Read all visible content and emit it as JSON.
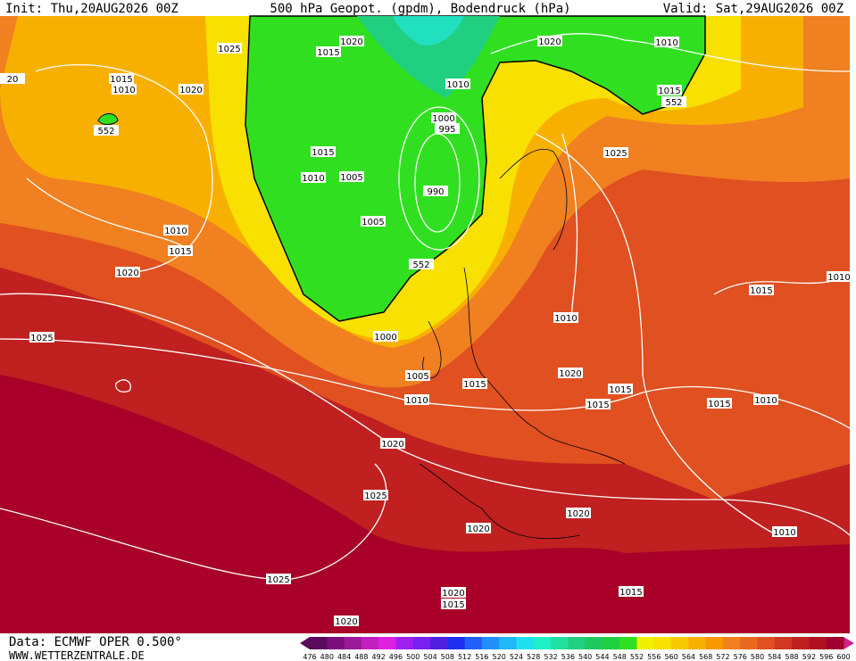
{
  "header": {
    "init": "Init: Thu,20AUG2026 00Z",
    "title": "500 hPa Geopot. (gpdm), Bodendruck (hPa)",
    "valid": "Valid: Sat,29AUG2026 00Z"
  },
  "footer": {
    "data": "Data: ECMWF OPER 0.500°",
    "site": "WWW.WETTERZENTRALE.DE"
  },
  "colorbar": {
    "ticks": [
      476,
      480,
      484,
      488,
      492,
      496,
      500,
      504,
      508,
      512,
      516,
      520,
      524,
      528,
      532,
      536,
      540,
      544,
      548,
      552,
      556,
      560,
      564,
      568,
      572,
      576,
      580,
      584,
      588,
      592,
      596,
      600
    ],
    "colors": [
      "#5a0a5a",
      "#7a0f7a",
      "#9a1a9a",
      "#c020c0",
      "#e020e0",
      "#a020f0",
      "#7a20f0",
      "#5020e0",
      "#2030f0",
      "#2060f8",
      "#2090f8",
      "#20b8f8",
      "#20e0f0",
      "#20f0c8",
      "#20e0a0",
      "#20d080",
      "#20c860",
      "#20d040",
      "#30e020",
      "#f0f000",
      "#f8e000",
      "#f8c800",
      "#f8b000",
      "#f89800",
      "#f08020",
      "#e86820",
      "#e05020",
      "#d03820",
      "#c02020",
      "#b01020",
      "#a00030"
    ]
  },
  "isobar_labels": [
    "1020",
    "1015",
    "1025",
    "1020",
    "1010",
    "1015",
    "1010",
    "1020",
    "20",
    "1010",
    "1000",
    "995",
    "1015",
    "552",
    "552",
    "1025",
    "1015",
    "1010",
    "1005",
    "990",
    "1005",
    "1010",
    "1015",
    "552",
    "1020",
    "1015",
    "1010",
    "1010",
    "1025",
    "1000",
    "1005",
    "1020",
    "1015",
    "1015",
    "1010",
    "1015",
    "1015",
    "1010",
    "1020",
    "1025",
    "1020",
    "1020",
    "1010",
    "1025",
    "1020",
    "1015",
    "1015",
    "1020"
  ]
}
